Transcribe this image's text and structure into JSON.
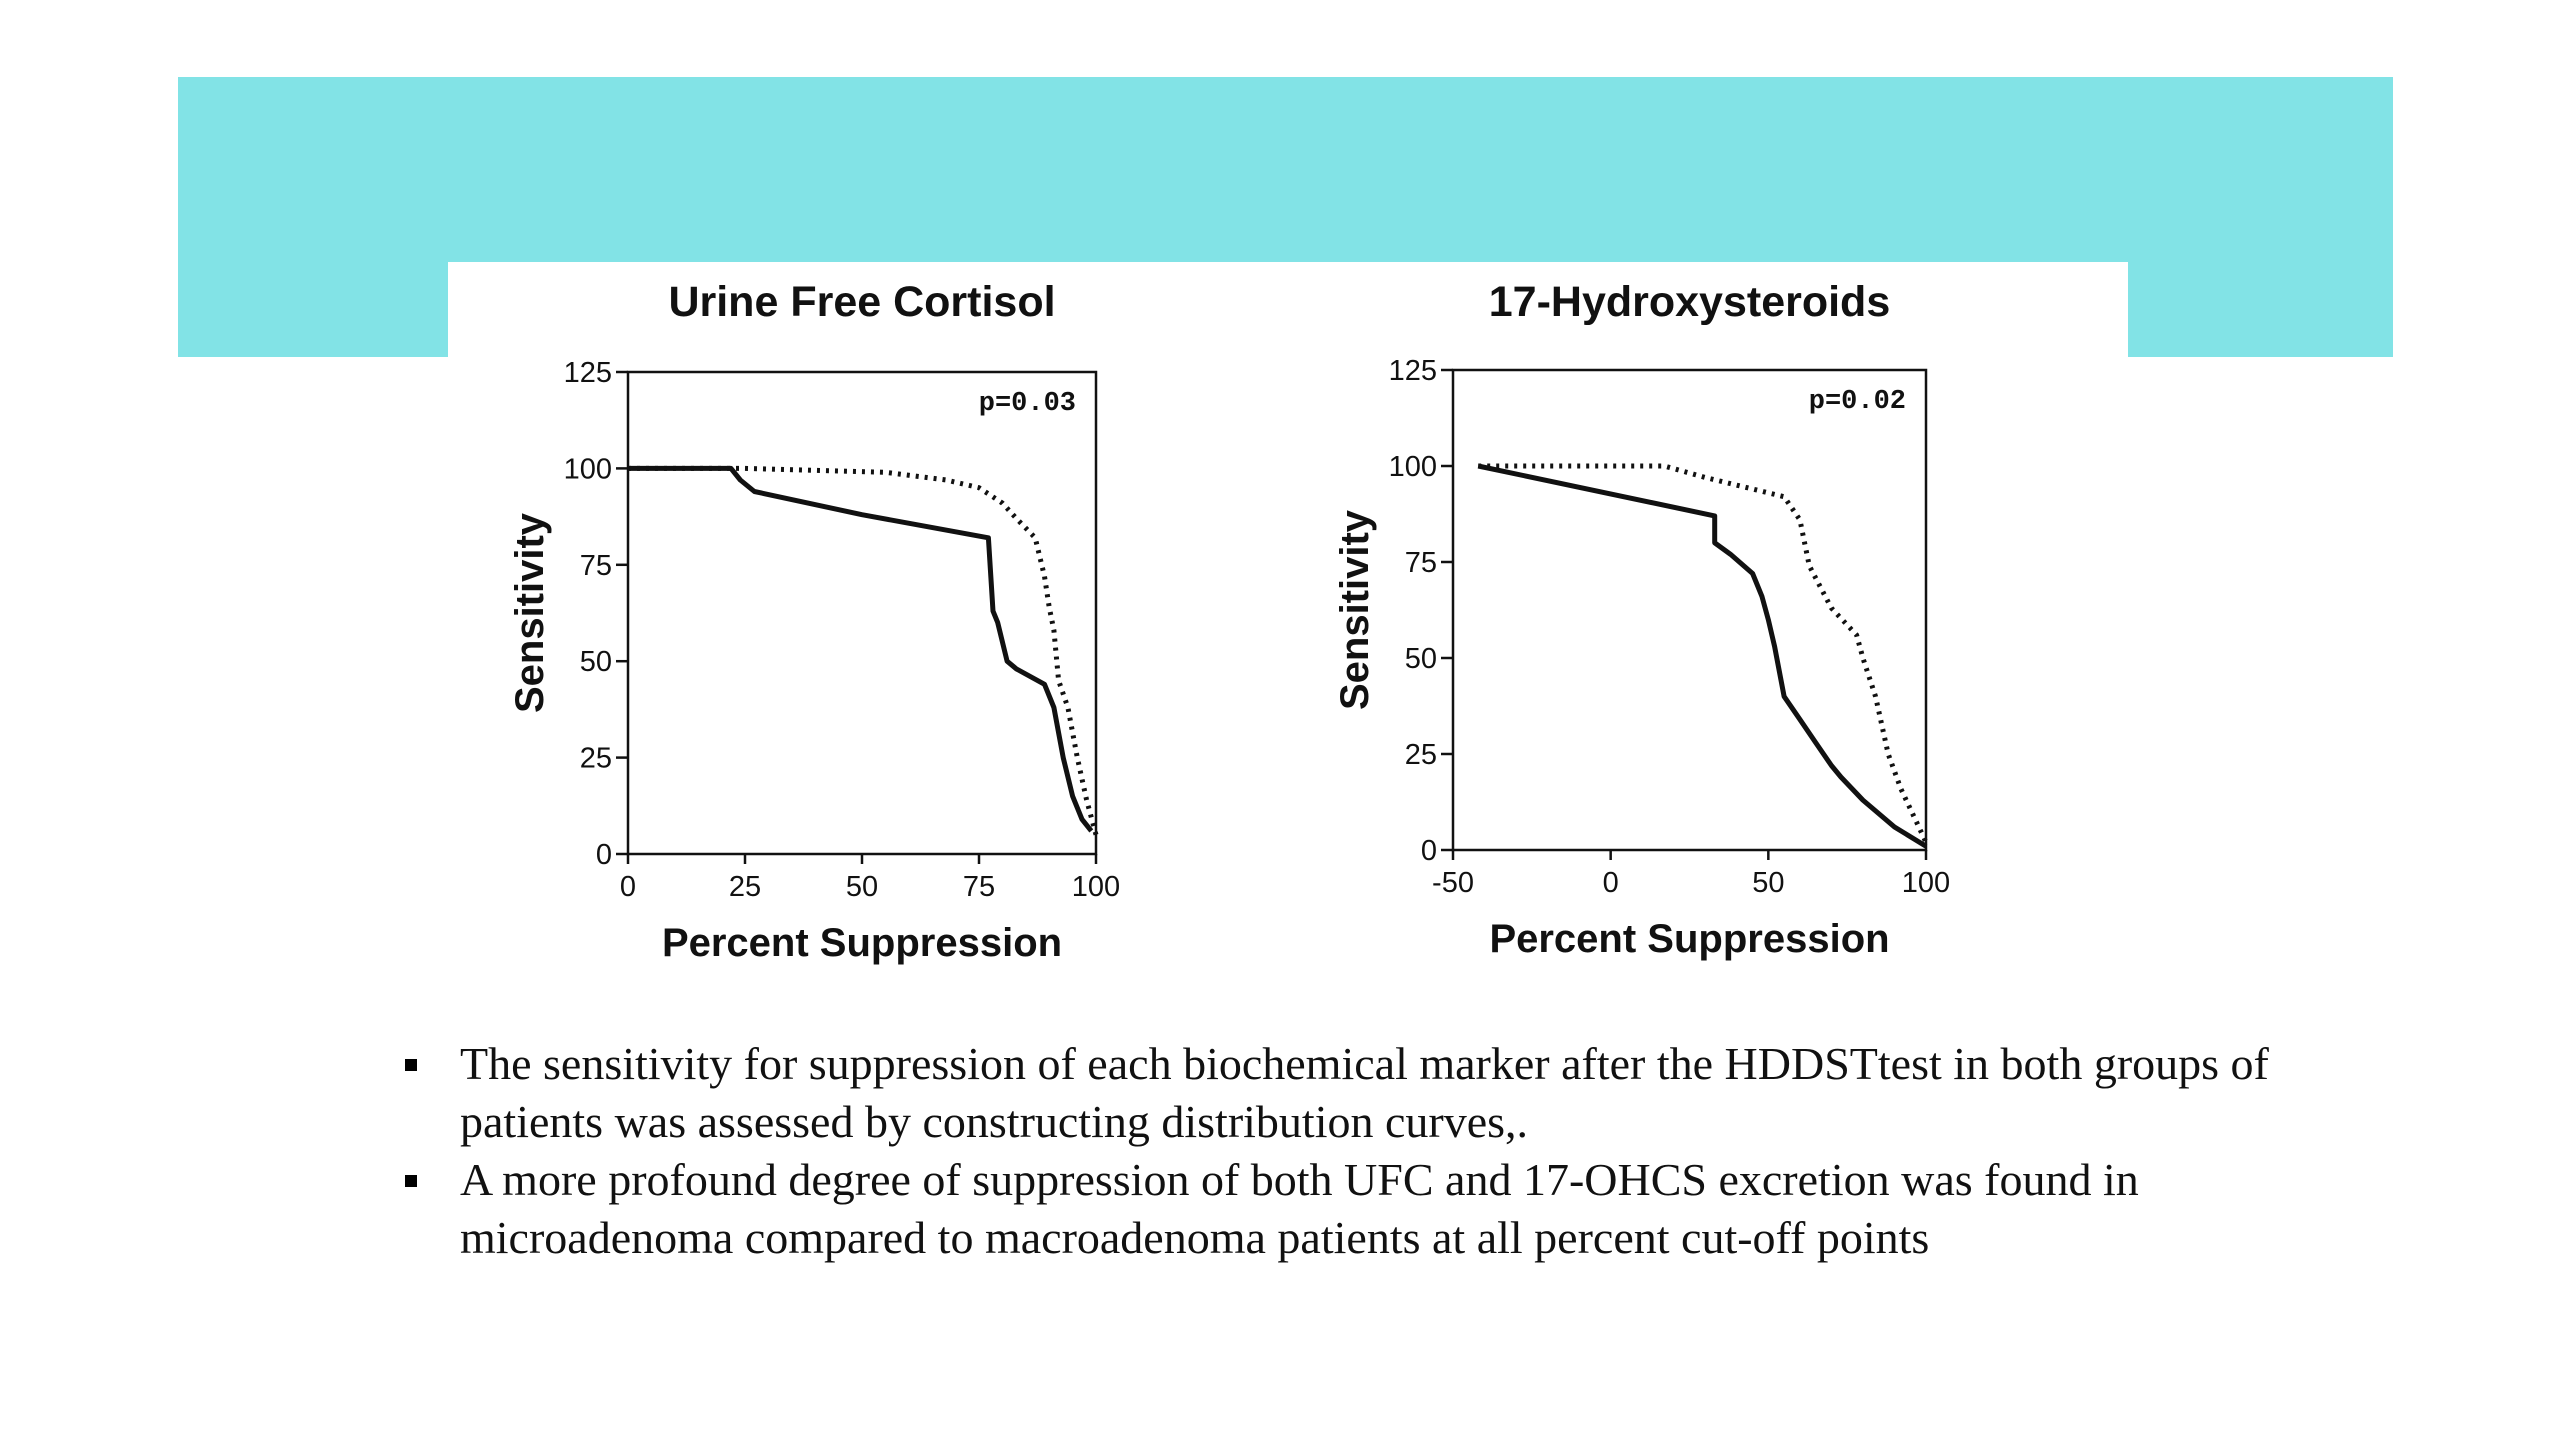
{
  "chart_data": [
    {
      "type": "line",
      "title": "Urine Free Cortisol",
      "xlabel": "Percent Suppression",
      "ylabel": "Sensitivity",
      "xlim": [
        0,
        100
      ],
      "ylim": [
        0,
        125
      ],
      "xticks": [
        0,
        25,
        50,
        75,
        100
      ],
      "yticks": [
        0,
        25,
        50,
        75,
        100,
        125
      ],
      "annotation": "p=0.03",
      "series": [
        {
          "style": "solid",
          "x": [
            0,
            22,
            24,
            27,
            50,
            77,
            78,
            79,
            81,
            83,
            89,
            91,
            93,
            95,
            97,
            99
          ],
          "y": [
            100,
            100,
            97,
            94,
            88,
            82,
            63,
            60,
            50,
            48,
            44,
            38,
            25,
            15,
            9,
            6
          ]
        },
        {
          "style": "dotted",
          "x": [
            0,
            25,
            55,
            68,
            75,
            80,
            83,
            87,
            89,
            90,
            91,
            92,
            94,
            96,
            98,
            100
          ],
          "y": [
            100,
            100,
            99,
            97,
            95,
            91,
            87,
            82,
            72,
            64,
            58,
            45,
            38,
            25,
            14,
            5
          ]
        }
      ]
    },
    {
      "type": "line",
      "title": "17-Hydroxysteroids",
      "xlabel": "Percent Suppression",
      "ylabel": "Sensitivity",
      "xlim": [
        -50,
        100
      ],
      "ylim": [
        0,
        125
      ],
      "xticks": [
        -50,
        0,
        50,
        100
      ],
      "yticks": [
        0,
        25,
        50,
        75,
        100,
        125
      ],
      "annotation": "p=0.02",
      "series": [
        {
          "style": "solid",
          "x": [
            -42,
            33,
            33,
            38,
            45,
            48,
            50,
            52,
            55,
            60,
            65,
            70,
            73,
            80,
            90,
            100
          ],
          "y": [
            100,
            87,
            80,
            77,
            72,
            66,
            60,
            53,
            40,
            34,
            28,
            22,
            19,
            13,
            6,
            1
          ]
        },
        {
          "style": "dotted",
          "x": [
            -42,
            0,
            17,
            30,
            45,
            55,
            60,
            63,
            70,
            78,
            80,
            84,
            88,
            92,
            96,
            100
          ],
          "y": [
            100,
            100,
            100,
            97,
            94,
            92,
            86,
            74,
            63,
            56,
            50,
            40,
            25,
            16,
            9,
            2
          ]
        }
      ]
    }
  ],
  "bullets": [
    {
      "text": "The sensitivity for suppression of each biochemical marker after the HDDSTtest in both groups of patients was assessed by constructing distribution curves,."
    },
    {
      "text": "A more profound degree of suppression of both UFC and 17-OHCS excretion was found in microadenoma compared to macroadenoma patients at all percent cut-off points"
    }
  ],
  "colors": {
    "banner": "#82e3e6",
    "ink": "#111111"
  }
}
